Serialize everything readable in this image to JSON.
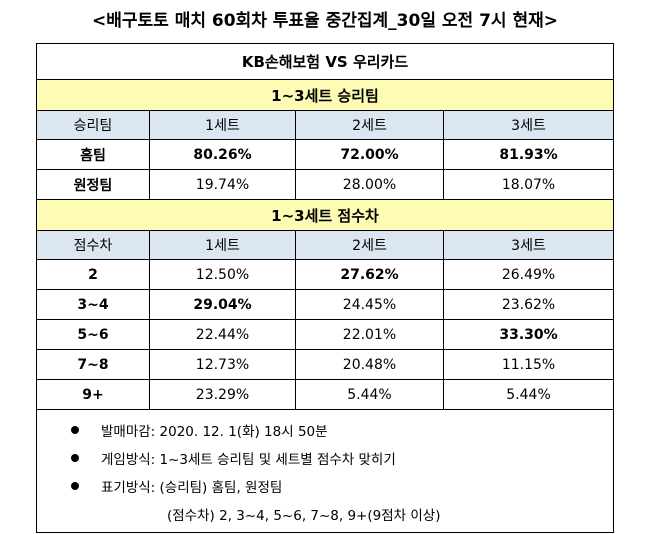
{
  "title": "<배구토토 매치 60회차 투표율 중간집계_30일 오전 7시 현재>",
  "match": "KB손해보험 VS 우리카드",
  "section1": {
    "title": "1~3세트 승리팀",
    "headers": [
      "승리팀",
      "1세트",
      "2세트",
      "3세트"
    ],
    "rows": [
      {
        "label": "홈팀",
        "values": [
          "80.26%",
          "72.00%",
          "81.93%"
        ]
      },
      {
        "label": "원정팀",
        "values": [
          "19.74%",
          "28.00%",
          "18.07%"
        ]
      }
    ]
  },
  "section2": {
    "title": "1~3세트 점수차",
    "headers": [
      "점수차",
      "1세트",
      "2세트",
      "3세트"
    ],
    "rows": [
      {
        "label": "2",
        "values": [
          "12.50%",
          "27.62%",
          "26.49%"
        ]
      },
      {
        "label": "3~4",
        "values": [
          "29.04%",
          "24.45%",
          "23.62%"
        ]
      },
      {
        "label": "5~6",
        "values": [
          "22.44%",
          "22.01%",
          "33.30%"
        ]
      },
      {
        "label": "7~8",
        "values": [
          "12.73%",
          "20.48%",
          "11.15%"
        ]
      },
      {
        "label": "9+",
        "values": [
          "23.29%",
          "5.44%",
          "5.44%"
        ]
      }
    ]
  },
  "notes": [
    "발매마감: 2020. 12. 1(화) 18시 50분",
    "게임방식: 1~3세트 승리팀 및 세트별 점수차 맞히기",
    "표기방식: (승리팀) 홈팀, 원정팀"
  ],
  "notes_continuation": "(점수차) 2, 3~4, 5~6, 7~8, 9+(9점차 이상)"
}
